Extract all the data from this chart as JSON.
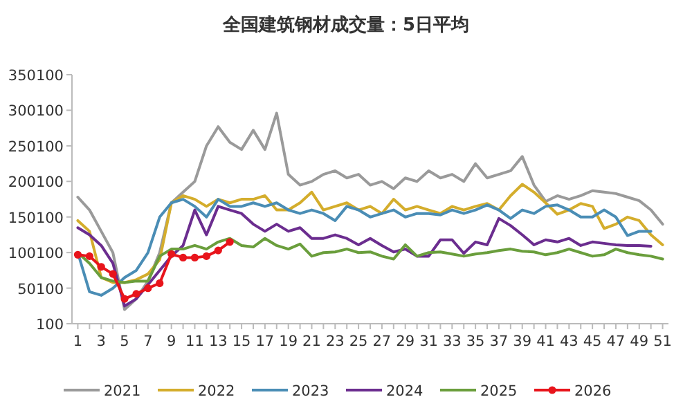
{
  "chart_data": {
    "type": "line",
    "title": "全国建筑钢材成交量：5日平均",
    "x": [
      1,
      2,
      3,
      4,
      5,
      6,
      7,
      8,
      9,
      10,
      11,
      12,
      13,
      14,
      15,
      16,
      17,
      18,
      19,
      20,
      21,
      22,
      23,
      24,
      25,
      26,
      27,
      28,
      29,
      30,
      31,
      32,
      33,
      34,
      35,
      36,
      37,
      38,
      39,
      40,
      41,
      42,
      43,
      44,
      45,
      46,
      47,
      48,
      49,
      50,
      51
    ],
    "xlim": [
      0.5,
      51.5
    ],
    "xticks": [
      1,
      {
        "value": 2,
        "label": null
      },
      3,
      {
        "value": 4,
        "label": null
      },
      5,
      {
        "value": 6,
        "label": null
      },
      7,
      {
        "value": 8,
        "label": null
      },
      9,
      {
        "value": 10,
        "label": null
      },
      11,
      {
        "value": 12,
        "label": null
      },
      13,
      {
        "value": 14,
        "label": null
      },
      15,
      {
        "value": 16,
        "label": null
      },
      17,
      {
        "value": 18,
        "label": null
      },
      19,
      {
        "value": 20,
        "label": null
      },
      21,
      {
        "value": 22,
        "label": null
      },
      23,
      {
        "value": 24,
        "label": null
      },
      25,
      {
        "value": 26,
        "label": null
      },
      27,
      {
        "value": 28,
        "label": null
      },
      29,
      {
        "value": 30,
        "label": null
      },
      31,
      {
        "value": 32,
        "label": null
      },
      33,
      {
        "value": 34,
        "label": null
      },
      35,
      {
        "value": 36,
        "label": null
      },
      37,
      {
        "value": 38,
        "label": null
      },
      39,
      {
        "value": 40,
        "label": null
      },
      41,
      {
        "value": 42,
        "label": null
      },
      43,
      {
        "value": 44,
        "label": null
      },
      45,
      {
        "value": 46,
        "label": null
      },
      47,
      {
        "value": 48,
        "label": null
      },
      49,
      {
        "value": 50,
        "label": null
      },
      51
    ],
    "ylim": [
      100,
      350100
    ],
    "yticks": [
      100,
      50100,
      100100,
      150100,
      200100,
      250100,
      300100,
      350100
    ],
    "legend": "bottom",
    "series": [
      {
        "name": "2021",
        "color": "#9a9a9a",
        "values": [
          178000,
          160000,
          130000,
          100000,
          20000,
          35000,
          60000,
          100000,
          170000,
          185000,
          200000,
          250000,
          277000,
          255000,
          245000,
          272000,
          245000,
          296000,
          210000,
          195000,
          200000,
          210000,
          215000,
          205000,
          210000,
          195000,
          200000,
          190000,
          205000,
          200000,
          215000,
          205000,
          210000,
          200000,
          225000,
          205000,
          210000,
          215000,
          235000,
          195000,
          172000,
          180000,
          175000,
          180000,
          187000,
          185000,
          183000,
          178000,
          173000,
          160000,
          140000
        ]
      },
      {
        "name": "2022",
        "color": "#d4ad2c",
        "values": [
          145000,
          130000,
          65000,
          58000,
          58000,
          62000,
          70000,
          90000,
          170000,
          180000,
          175000,
          165000,
          175000,
          170000,
          175000,
          175000,
          180000,
          160000,
          160000,
          170000,
          185000,
          160000,
          165000,
          170000,
          160000,
          165000,
          155000,
          175000,
          160000,
          165000,
          160000,
          155000,
          165000,
          160000,
          165000,
          169000,
          160000,
          180000,
          196000,
          185000,
          170000,
          154000,
          160000,
          169000,
          165000,
          134000,
          140000,
          150000,
          145000,
          125000,
          111000
        ]
      },
      {
        "name": "2023",
        "color": "#4a8db5",
        "values": [
          100000,
          45000,
          40000,
          50000,
          65000,
          75000,
          100000,
          150000,
          170000,
          175000,
          165000,
          150000,
          175000,
          165000,
          165000,
          170000,
          165000,
          170000,
          160000,
          155000,
          160000,
          155000,
          145000,
          165000,
          160000,
          150000,
          155000,
          160000,
          150000,
          155000,
          155000,
          153000,
          160000,
          155000,
          160000,
          167000,
          160000,
          148000,
          160000,
          155000,
          165000,
          167000,
          160000,
          150000,
          150000,
          160000,
          150000,
          124000,
          130000,
          130000,
          null
        ]
      },
      {
        "name": "2024",
        "color": "#6b2d8f",
        "values": [
          135000,
          125000,
          110000,
          85000,
          25000,
          35000,
          55000,
          75000,
          95000,
          110000,
          160000,
          125000,
          165000,
          160000,
          155000,
          140000,
          130000,
          140000,
          130000,
          135000,
          120000,
          120000,
          125000,
          120000,
          111000,
          120000,
          110000,
          101000,
          105000,
          95000,
          95000,
          118000,
          118000,
          99000,
          115000,
          111000,
          148000,
          138000,
          125000,
          111000,
          118000,
          115000,
          120000,
          110000,
          115000,
          113000,
          111000,
          110000,
          110000,
          109000,
          null
        ]
      },
      {
        "name": "2025",
        "color": "#6a9e3c",
        "values": [
          100000,
          85000,
          65000,
          60000,
          58000,
          60000,
          60000,
          95000,
          105000,
          105000,
          110000,
          105000,
          115000,
          120000,
          110000,
          108000,
          120000,
          110000,
          105000,
          112000,
          95000,
          100000,
          101000,
          105000,
          100000,
          101000,
          95000,
          91000,
          111000,
          95000,
          100000,
          101000,
          98000,
          95000,
          98000,
          100000,
          103000,
          105000,
          102000,
          101000,
          97000,
          100000,
          105000,
          100000,
          95000,
          97000,
          105000,
          100000,
          97000,
          95000,
          91000
        ]
      },
      {
        "name": "2026",
        "color": "#e8141b",
        "marker": "circle",
        "x": [
          1,
          2,
          3,
          4,
          5,
          6,
          7,
          8,
          9,
          10,
          11,
          12,
          13,
          14
        ],
        "values": [
          97000,
          95000,
          80000,
          70000,
          35000,
          42000,
          50000,
          57000,
          98000,
          93000,
          93000,
          95000,
          103000,
          115000
        ]
      }
    ]
  }
}
